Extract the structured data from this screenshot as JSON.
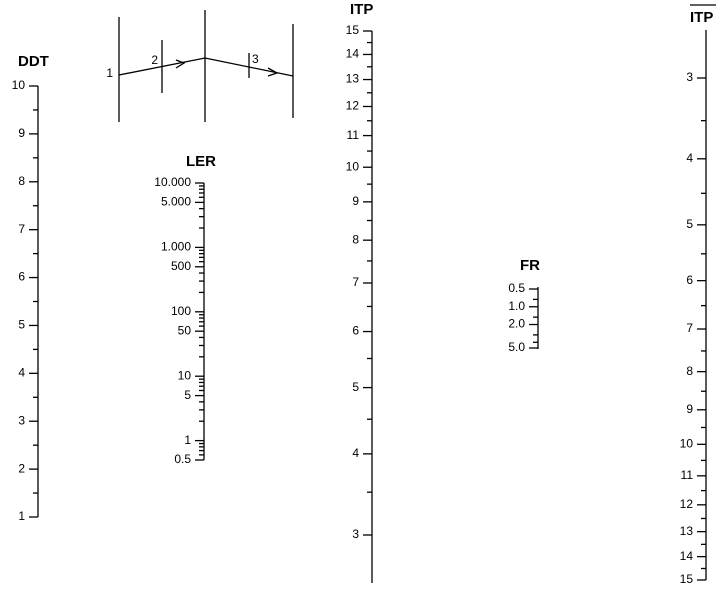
{
  "key": {
    "labels": [
      "1",
      "2",
      "3"
    ]
  },
  "scales": [
    {
      "name": "DDT",
      "ticks": [
        1,
        2,
        3,
        4,
        5,
        6,
        7,
        8,
        9,
        10
      ],
      "minor_ticks": [
        1.5,
        2.5,
        3.5,
        4.5,
        5.5,
        6.5,
        7.5,
        8.5,
        9.5
      ]
    },
    {
      "name": "LER",
      "log_scale": true,
      "ticks": [
        {
          "value": 10000,
          "label": "10.000"
        },
        {
          "value": 5000,
          "label": "5.000"
        },
        {
          "value": 1000,
          "label": "1.000"
        },
        500,
        100,
        50,
        10,
        5,
        1,
        0.5
      ],
      "minor_ticks": [
        0.6,
        0.7,
        0.8,
        0.9,
        2,
        3,
        4,
        6,
        7,
        8,
        9,
        20,
        30,
        40,
        60,
        70,
        80,
        90,
        200,
        300,
        400,
        600,
        700,
        800,
        900,
        2000,
        3000,
        4000,
        6000,
        7000,
        8000,
        9000
      ]
    },
    {
      "name": "ITP",
      "ticks": [
        15,
        14,
        13,
        12,
        11,
        10,
        9,
        8,
        7,
        6,
        5,
        4,
        3
      ],
      "minor_ticks": [
        3.5,
        4.5,
        5.5,
        6.5,
        7.5,
        8.5,
        9.5,
        10.5,
        11.5,
        12.5,
        13.5,
        14.5
      ]
    },
    {
      "name": "FR",
      "log_scale": true,
      "ticks": [
        0.5,
        {
          "value": 1,
          "label": "1.0"
        },
        {
          "value": 2,
          "label": "2.0"
        },
        {
          "value": 5,
          "label": "5.0"
        }
      ],
      "minor_ticks": [
        0.75,
        1.5,
        3,
        4
      ]
    },
    {
      "name": "ITP",
      "ticks": [
        3,
        4,
        5,
        6,
        7,
        8,
        9,
        10,
        11,
        12,
        13,
        14,
        15
      ],
      "minor_ticks": [
        3.5,
        4.5,
        5.5,
        6.5,
        7.5,
        8.5,
        9.5,
        10.5,
        11.5,
        12.5,
        13.5,
        14.5
      ]
    }
  ]
}
